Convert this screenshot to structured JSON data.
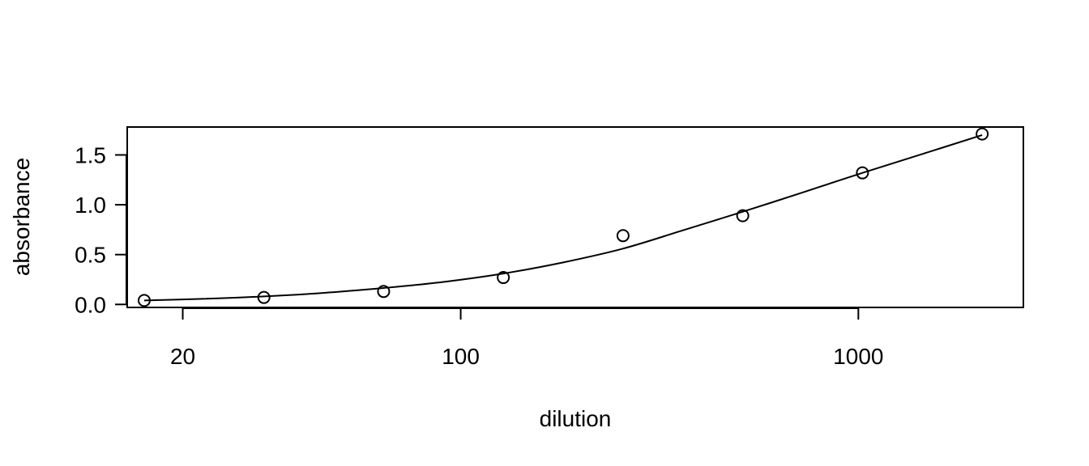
{
  "chart_data": {
    "type": "scatter",
    "xlabel": "dilution",
    "ylabel": "absorbance",
    "x_scale": "log",
    "xlim": [
      14.5,
      2600
    ],
    "ylim": [
      -0.03,
      1.78
    ],
    "x_ticks": [
      {
        "value": 20,
        "label": "20"
      },
      {
        "value": 100,
        "label": "100"
      },
      {
        "value": 1000,
        "label": "1000"
      }
    ],
    "y_ticks": [
      {
        "value": 0.0,
        "label": "0.0"
      },
      {
        "value": 0.5,
        "label": "0.5"
      },
      {
        "value": 1.0,
        "label": "1.0"
      },
      {
        "value": 1.5,
        "label": "1.5"
      }
    ],
    "points": {
      "x": [
        16,
        32,
        64,
        128,
        256,
        512,
        1024,
        2048
      ],
      "y": [
        0.04,
        0.07,
        0.13,
        0.27,
        0.69,
        0.89,
        1.32,
        1.71
      ]
    },
    "fit_curve": {
      "x": [
        16,
        22,
        32,
        45,
        64,
        90,
        128,
        180,
        256,
        360,
        512,
        720,
        1024,
        1450,
        2048
      ],
      "y": [
        0.04,
        0.055,
        0.08,
        0.115,
        0.165,
        0.225,
        0.31,
        0.42,
        0.56,
        0.74,
        0.93,
        1.12,
        1.32,
        1.51,
        1.7
      ]
    },
    "grid": false,
    "legend": "none"
  }
}
